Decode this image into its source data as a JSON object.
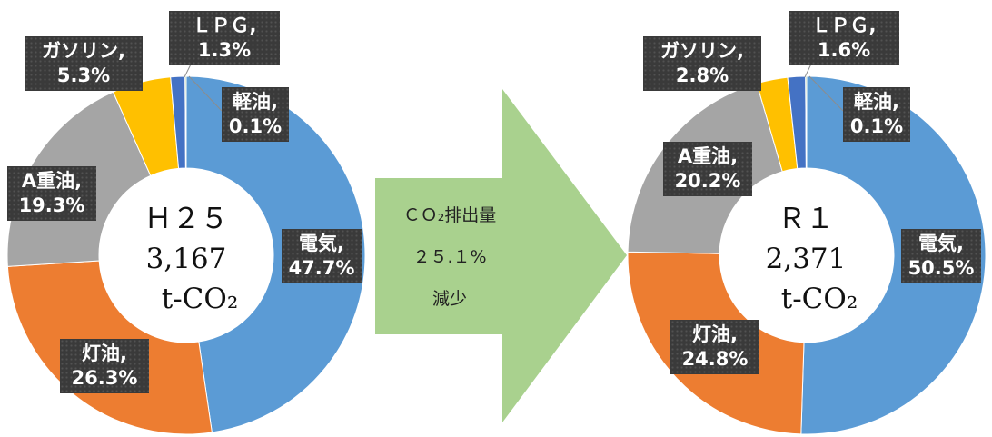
{
  "colors": {
    "電気": "#5b9bd5",
    "灯油": "#ed7d31",
    "A重油": "#a5a5a5",
    "ガソリン": "#ffc000",
    "LPG": "#4472c4",
    "軽油": "#70ad47",
    "arrow": "#a9d18e",
    "label_bg": "#3a3a3a"
  },
  "chart_data": [
    {
      "type": "pie",
      "variant": "donut",
      "center_label": {
        "line1": "Ｈ２５",
        "line2": "3,167",
        "line3": "t-CO₂"
      },
      "series": [
        {
          "name": "電気",
          "value": 47.7,
          "label_name": "電気,",
          "label_value": "47.7%"
        },
        {
          "name": "灯油",
          "value": 26.3,
          "label_name": "灯油,",
          "label_value": "26.3%"
        },
        {
          "name": "A重油",
          "value": 19.3,
          "label_name": "A重油,",
          "label_value": "19.3%"
        },
        {
          "name": "ガソリン",
          "value": 5.3,
          "label_name": "ガソリン,",
          "label_value": "5.3%"
        },
        {
          "name": "LPG",
          "value": 1.3,
          "label_name": "ＬＰＧ,",
          "label_value": "1.3%"
        },
        {
          "name": "軽油",
          "value": 0.1,
          "label_name": "軽油,",
          "label_value": "0.1%"
        }
      ]
    },
    {
      "type": "pie",
      "variant": "donut",
      "center_label": {
        "line1": "Ｒ１",
        "line2": "2,371",
        "line3": "t-CO₂"
      },
      "series": [
        {
          "name": "電気",
          "value": 50.5,
          "label_name": "電気,",
          "label_value": "50.5%"
        },
        {
          "name": "灯油",
          "value": 24.8,
          "label_name": "灯油,",
          "label_value": "24.8%"
        },
        {
          "name": "A重油",
          "value": 20.2,
          "label_name": "A重油,",
          "label_value": "20.2%"
        },
        {
          "name": "ガソリン",
          "value": 2.8,
          "label_name": "ガソリン,",
          "label_value": "2.8%"
        },
        {
          "name": "LPG",
          "value": 1.6,
          "label_name": "ＬＰＧ,",
          "label_value": "1.6%"
        },
        {
          "name": "軽油",
          "value": 0.1,
          "label_name": "軽油,",
          "label_value": "0.1%"
        }
      ]
    }
  ],
  "arrow": {
    "line1": "ＣＯ₂排出量",
    "line2": "２５.１%",
    "line3": "減少"
  }
}
